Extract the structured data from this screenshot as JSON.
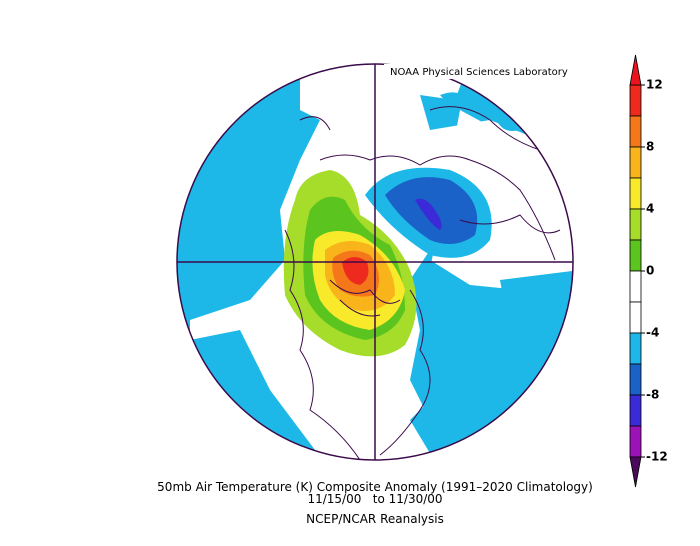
{
  "header": {
    "credit": "NOAA Physical Sciences Laboratory"
  },
  "footer": {
    "title": "50mb Air Temperature (K) Composite Anomaly (1991–2020 Climatology)",
    "dates": "11/15/00   to 11/30/00",
    "source": "NCEP/NCAR Reanalysis"
  },
  "colorbar": {
    "ticks": [
      12,
      8,
      4,
      0,
      -4,
      -8,
      -12
    ],
    "over_color": "#e8141e",
    "under_color": "#4a0a5a",
    "colors": [
      "#ee2a1e",
      "#f4781a",
      "#f8b41a",
      "#f8ea2a",
      "#a6dc2a",
      "#5cc41e",
      "#ffffff",
      "#ffffff",
      "#1eb8e8",
      "#1a62c8",
      "#3a2ad8",
      "#9a12b8"
    ]
  }
}
